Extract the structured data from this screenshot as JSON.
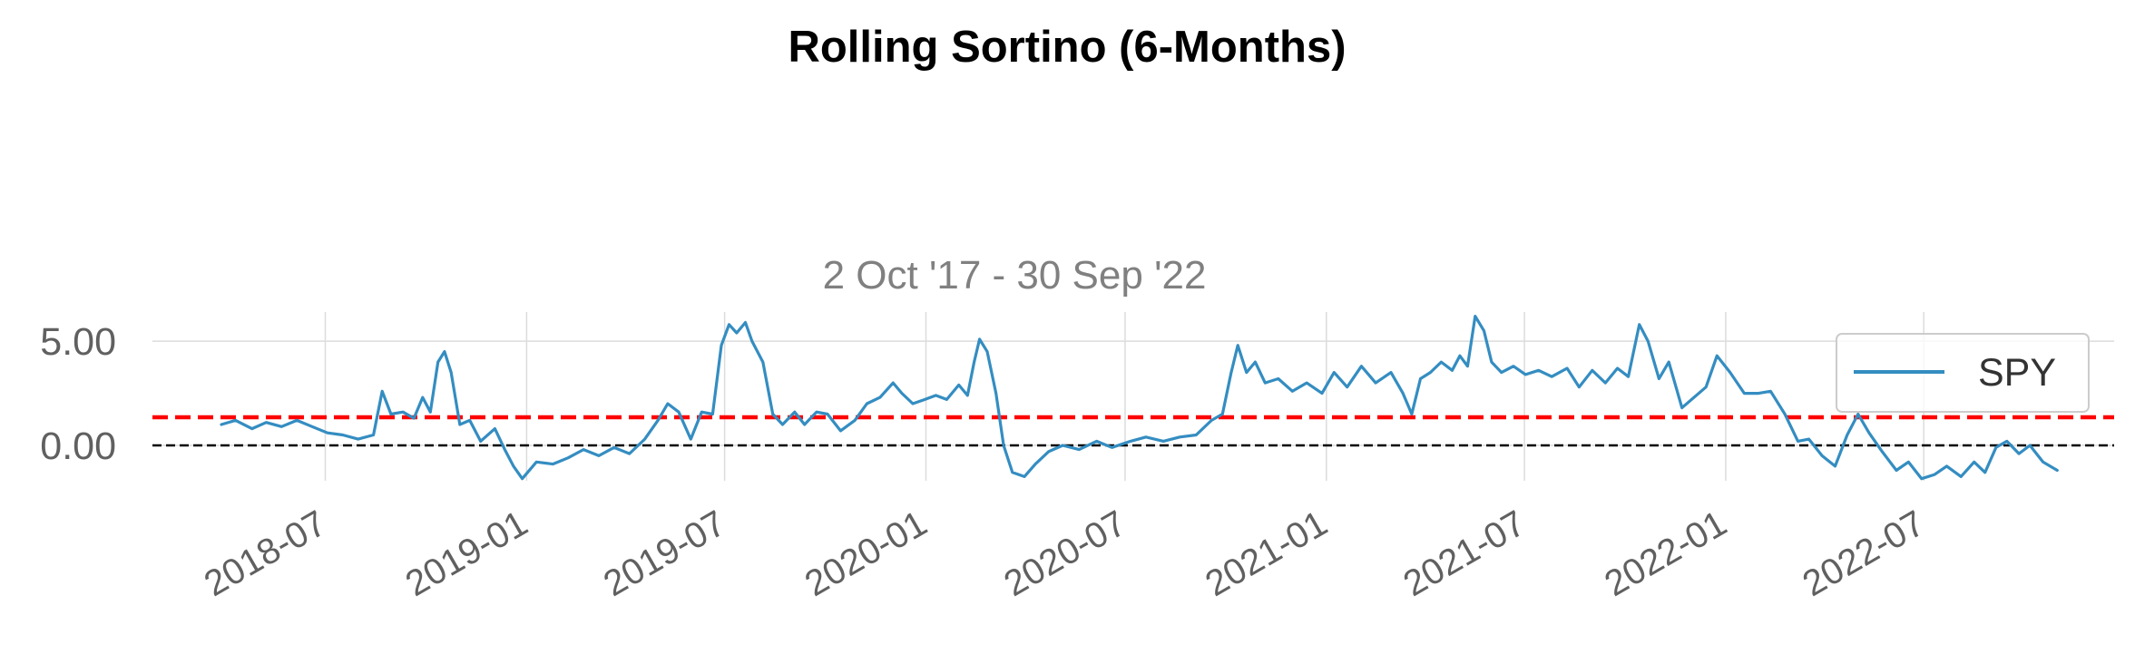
{
  "chart_data": {
    "type": "line",
    "title": "Rolling Sortino (6-Months)",
    "subtitle": "2 Oct '17 - 30 Sep '22",
    "xlabel": "",
    "ylabel": "",
    "x_range": [
      "2018-01-24",
      "2022-12-22"
    ],
    "x_ticks": [
      "2018-07",
      "2019-01",
      "2019-07",
      "2020-01",
      "2020-07",
      "2021-01",
      "2021-07",
      "2022-01",
      "2022-07"
    ],
    "ylim": [
      -1.7,
      6.4
    ],
    "y_ticks": [
      {
        "value": 0,
        "label": "0.00"
      },
      {
        "value": 5,
        "label": "5.00"
      }
    ],
    "grid": true,
    "legend_position": "top-right",
    "reference_lines": [
      {
        "value": 1.35,
        "color": "#ff0000",
        "style": "dashed"
      },
      {
        "value": 0,
        "color": "#000000",
        "style": "dashed"
      }
    ],
    "series": [
      {
        "name": "SPY",
        "color": "#348dc1",
        "points": [
          [
            "2018-03-28",
            1.0
          ],
          [
            "2018-04-10",
            1.2
          ],
          [
            "2018-04-25",
            0.8
          ],
          [
            "2018-05-08",
            1.1
          ],
          [
            "2018-05-22",
            0.9
          ],
          [
            "2018-06-05",
            1.2
          ],
          [
            "2018-06-19",
            0.9
          ],
          [
            "2018-07-03",
            0.6
          ],
          [
            "2018-07-17",
            0.5
          ],
          [
            "2018-07-31",
            0.3
          ],
          [
            "2018-08-14",
            0.5
          ],
          [
            "2018-08-22",
            2.6
          ],
          [
            "2018-08-30",
            1.5
          ],
          [
            "2018-09-10",
            1.6
          ],
          [
            "2018-09-20",
            1.3
          ],
          [
            "2018-09-28",
            2.3
          ],
          [
            "2018-10-05",
            1.6
          ],
          [
            "2018-10-12",
            4.0
          ],
          [
            "2018-10-18",
            4.5
          ],
          [
            "2018-10-24",
            3.5
          ],
          [
            "2018-11-01",
            1.0
          ],
          [
            "2018-11-10",
            1.2
          ],
          [
            "2018-11-20",
            0.2
          ],
          [
            "2018-12-03",
            0.8
          ],
          [
            "2018-12-12",
            -0.2
          ],
          [
            "2018-12-20",
            -1.0
          ],
          [
            "2018-12-28",
            -1.6
          ],
          [
            "2019-01-10",
            -0.8
          ],
          [
            "2019-01-25",
            -0.9
          ],
          [
            "2019-02-08",
            -0.6
          ],
          [
            "2019-02-22",
            -0.2
          ],
          [
            "2019-03-08",
            -0.5
          ],
          [
            "2019-03-22",
            -0.1
          ],
          [
            "2019-04-05",
            -0.4
          ],
          [
            "2019-04-19",
            0.3
          ],
          [
            "2019-05-01",
            1.2
          ],
          [
            "2019-05-10",
            2.0
          ],
          [
            "2019-05-20",
            1.6
          ],
          [
            "2019-05-31",
            0.3
          ],
          [
            "2019-06-10",
            1.6
          ],
          [
            "2019-06-20",
            1.5
          ],
          [
            "2019-06-28",
            4.8
          ],
          [
            "2019-07-05",
            5.8
          ],
          [
            "2019-07-12",
            5.4
          ],
          [
            "2019-07-20",
            5.9
          ],
          [
            "2019-07-26",
            5.0
          ],
          [
            "2019-08-05",
            4.0
          ],
          [
            "2019-08-14",
            1.5
          ],
          [
            "2019-08-23",
            1.0
          ],
          [
            "2019-09-03",
            1.6
          ],
          [
            "2019-09-12",
            1.0
          ],
          [
            "2019-09-23",
            1.6
          ],
          [
            "2019-10-03",
            1.5
          ],
          [
            "2019-10-15",
            0.7
          ],
          [
            "2019-10-28",
            1.2
          ],
          [
            "2019-11-08",
            2.0
          ],
          [
            "2019-11-20",
            2.3
          ],
          [
            "2019-12-02",
            3.0
          ],
          [
            "2019-12-10",
            2.5
          ],
          [
            "2019-12-20",
            2.0
          ],
          [
            "2019-12-31",
            2.2
          ],
          [
            "2020-01-10",
            2.4
          ],
          [
            "2020-01-20",
            2.2
          ],
          [
            "2020-01-31",
            2.9
          ],
          [
            "2020-02-08",
            2.4
          ],
          [
            "2020-02-14",
            4.0
          ],
          [
            "2020-02-19",
            5.1
          ],
          [
            "2020-02-26",
            4.5
          ],
          [
            "2020-03-05",
            2.5
          ],
          [
            "2020-03-12",
            0.0
          ],
          [
            "2020-03-20",
            -1.3
          ],
          [
            "2020-03-31",
            -1.5
          ],
          [
            "2020-04-10",
            -0.9
          ],
          [
            "2020-04-22",
            -0.3
          ],
          [
            "2020-05-05",
            0.0
          ],
          [
            "2020-05-20",
            -0.2
          ],
          [
            "2020-06-05",
            0.2
          ],
          [
            "2020-06-19",
            -0.1
          ],
          [
            "2020-07-06",
            0.2
          ],
          [
            "2020-07-20",
            0.4
          ],
          [
            "2020-08-05",
            0.2
          ],
          [
            "2020-08-20",
            0.4
          ],
          [
            "2020-09-04",
            0.5
          ],
          [
            "2020-09-18",
            1.2
          ],
          [
            "2020-09-28",
            1.5
          ],
          [
            "2020-10-06",
            3.5
          ],
          [
            "2020-10-12",
            4.8
          ],
          [
            "2020-10-20",
            3.5
          ],
          [
            "2020-10-28",
            4.0
          ],
          [
            "2020-11-06",
            3.0
          ],
          [
            "2020-11-18",
            3.2
          ],
          [
            "2020-12-01",
            2.6
          ],
          [
            "2020-12-14",
            3.0
          ],
          [
            "2020-12-28",
            2.5
          ],
          [
            "2021-01-08",
            3.5
          ],
          [
            "2021-01-20",
            2.8
          ],
          [
            "2021-02-02",
            3.8
          ],
          [
            "2021-02-15",
            3.0
          ],
          [
            "2021-03-01",
            3.5
          ],
          [
            "2021-03-12",
            2.5
          ],
          [
            "2021-03-20",
            1.5
          ],
          [
            "2021-03-28",
            3.2
          ],
          [
            "2021-04-06",
            3.5
          ],
          [
            "2021-04-16",
            4.0
          ],
          [
            "2021-04-26",
            3.6
          ],
          [
            "2021-05-03",
            4.3
          ],
          [
            "2021-05-10",
            3.8
          ],
          [
            "2021-05-17",
            6.2
          ],
          [
            "2021-05-25",
            5.5
          ],
          [
            "2021-06-01",
            4.0
          ],
          [
            "2021-06-10",
            3.5
          ],
          [
            "2021-06-21",
            3.8
          ],
          [
            "2021-07-02",
            3.4
          ],
          [
            "2021-07-14",
            3.6
          ],
          [
            "2021-07-26",
            3.3
          ],
          [
            "2021-08-09",
            3.7
          ],
          [
            "2021-08-20",
            2.8
          ],
          [
            "2021-09-01",
            3.6
          ],
          [
            "2021-09-13",
            3.0
          ],
          [
            "2021-09-24",
            3.7
          ],
          [
            "2021-10-04",
            3.3
          ],
          [
            "2021-10-14",
            5.8
          ],
          [
            "2021-10-22",
            5.0
          ],
          [
            "2021-11-01",
            3.2
          ],
          [
            "2021-11-10",
            4.0
          ],
          [
            "2021-11-22",
            1.8
          ],
          [
            "2021-12-03",
            2.3
          ],
          [
            "2021-12-14",
            2.8
          ],
          [
            "2021-12-24",
            4.3
          ],
          [
            "2022-01-05",
            3.5
          ],
          [
            "2022-01-18",
            2.5
          ],
          [
            "2022-01-31",
            2.5
          ],
          [
            "2022-02-11",
            2.6
          ],
          [
            "2022-02-24",
            1.5
          ],
          [
            "2022-03-08",
            0.2
          ],
          [
            "2022-03-18",
            0.3
          ],
          [
            "2022-03-30",
            -0.5
          ],
          [
            "2022-04-11",
            -1.0
          ],
          [
            "2022-04-22",
            0.5
          ],
          [
            "2022-05-02",
            1.5
          ],
          [
            "2022-05-12",
            0.6
          ],
          [
            "2022-05-24",
            -0.3
          ],
          [
            "2022-06-06",
            -1.2
          ],
          [
            "2022-06-17",
            -0.8
          ],
          [
            "2022-06-29",
            -1.6
          ],
          [
            "2022-07-11",
            -1.4
          ],
          [
            "2022-07-22",
            -1.0
          ],
          [
            "2022-08-04",
            -1.5
          ],
          [
            "2022-08-16",
            -0.8
          ],
          [
            "2022-08-26",
            -1.3
          ],
          [
            "2022-09-05",
            -0.1
          ],
          [
            "2022-09-15",
            0.2
          ],
          [
            "2022-09-26",
            -0.4
          ],
          [
            "2022-10-06",
            0.0
          ],
          [
            "2022-10-18",
            -0.8
          ],
          [
            "2022-10-31",
            -1.2
          ]
        ]
      }
    ]
  }
}
